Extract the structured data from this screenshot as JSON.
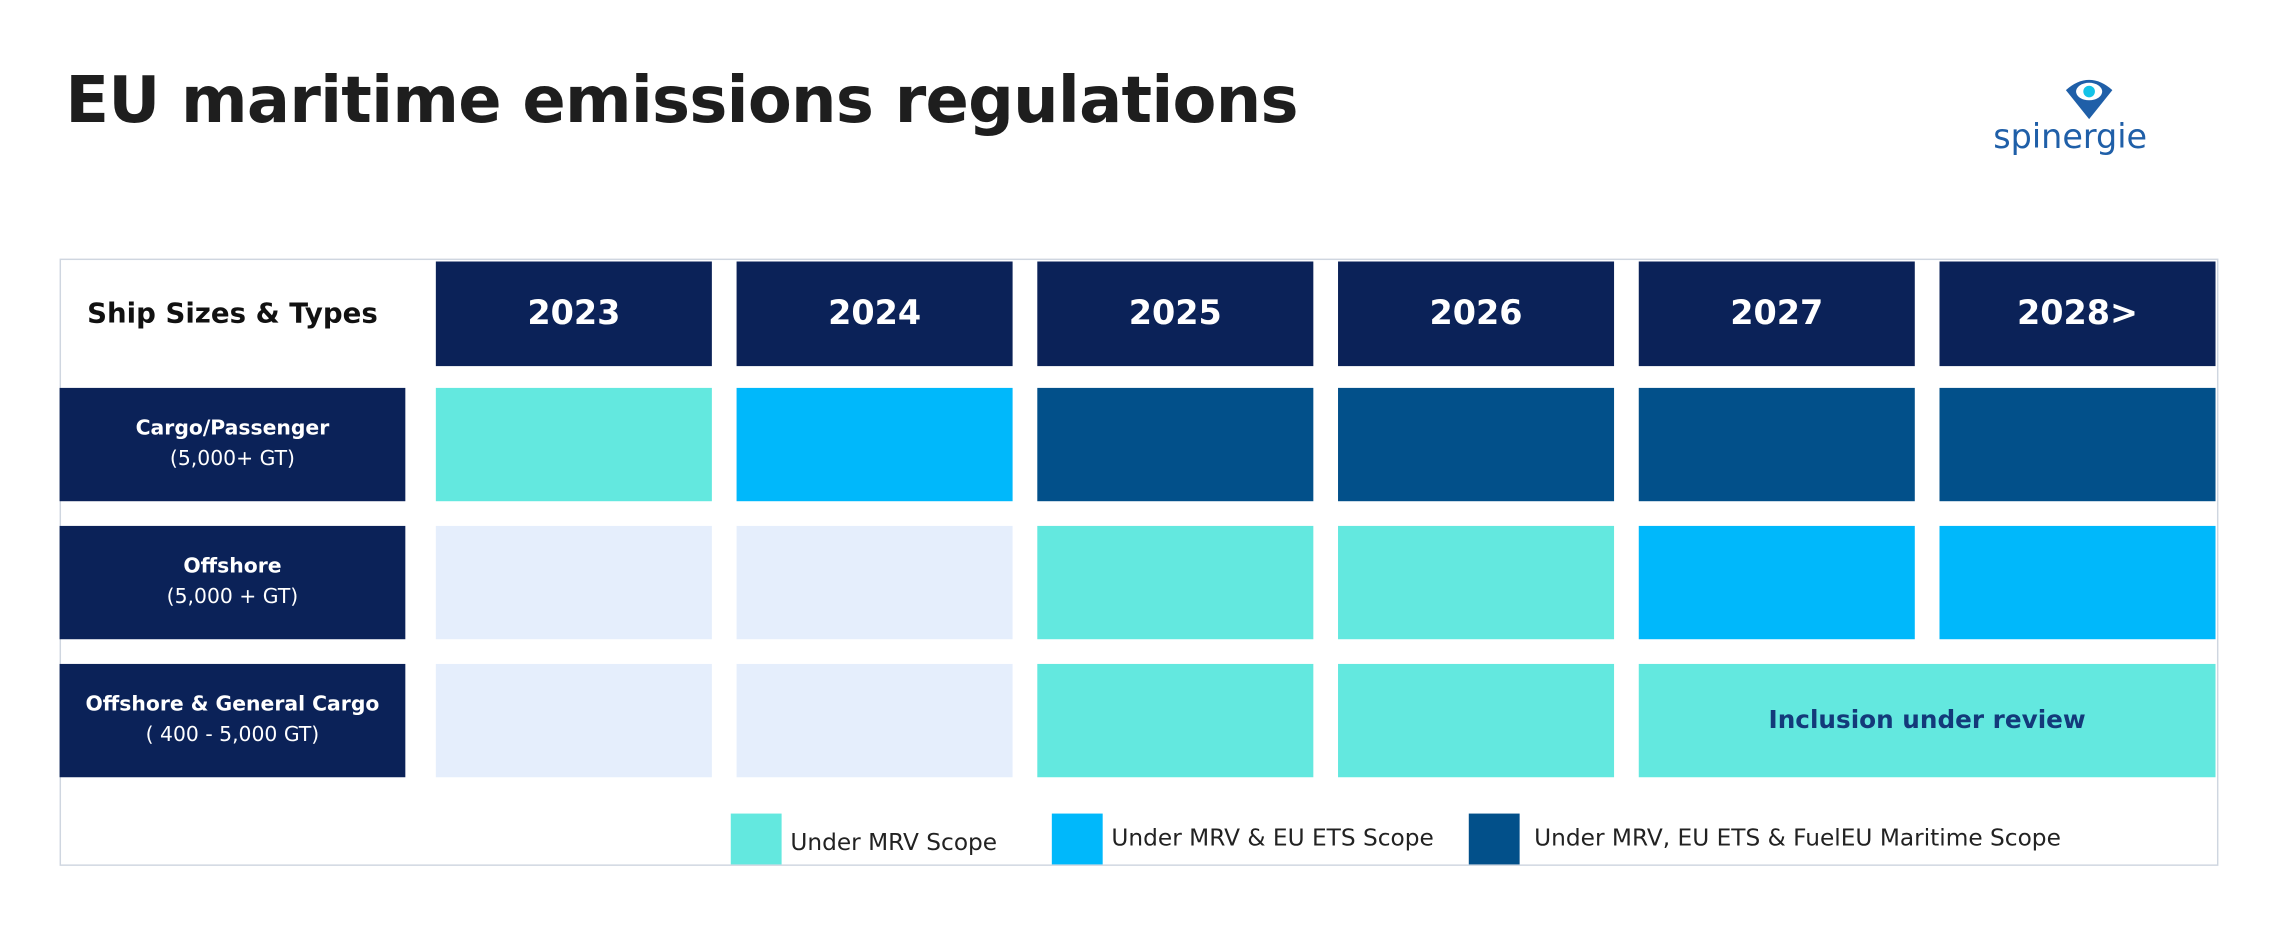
{
  "header": {
    "title": "EU maritime emissions regulations",
    "logo": "spinergie"
  },
  "table": {
    "corner": "Ship Sizes & Types",
    "years": [
      "2023",
      "2024",
      "2025",
      "2026",
      "2027",
      "2028>"
    ],
    "rows": [
      {
        "label": [
          "Cargo/Passenger",
          "(5,000+ GT)"
        ],
        "cells": [
          {
            "color": "#63e8df"
          },
          {
            "color": "#00b8fb"
          },
          {
            "color": "#02508a"
          },
          {
            "color": "#02508a"
          },
          {
            "color": "#02508a"
          },
          {
            "color": "#02508a"
          }
        ]
      },
      {
        "label": [
          "Offshore",
          "(5,000 + GT)"
        ],
        "cells": [
          {
            "color": "#e5eefc"
          },
          {
            "color": "#e5eefc"
          },
          {
            "color": "#63e8df"
          },
          {
            "color": "#63e8df"
          },
          {
            "color": "#00b8fb"
          },
          {
            "color": "#00b8fb"
          }
        ]
      },
      {
        "label": [
          "Offshore & General Cargo",
          "( 400 - 5,000 GT)"
        ],
        "cells": [
          {
            "color": "#e5eefc"
          },
          {
            "color": "#e5eefc"
          },
          {
            "color": "#63e8df"
          },
          {
            "color": "#63e8df"
          },
          {
            "color": "#63e8df",
            "span": 2,
            "text": "Inclusion under review"
          }
        ]
      }
    ]
  },
  "legend": [
    {
      "label": "Under MRV Scope",
      "color": "#63e8df"
    },
    {
      "label": "Under MRV & EU ETS Scope",
      "color": "#00b8fb"
    },
    {
      "label": "Under MRV, EU ETS  & FuelEU Maritime Scope",
      "color": "#02508a"
    }
  ]
}
